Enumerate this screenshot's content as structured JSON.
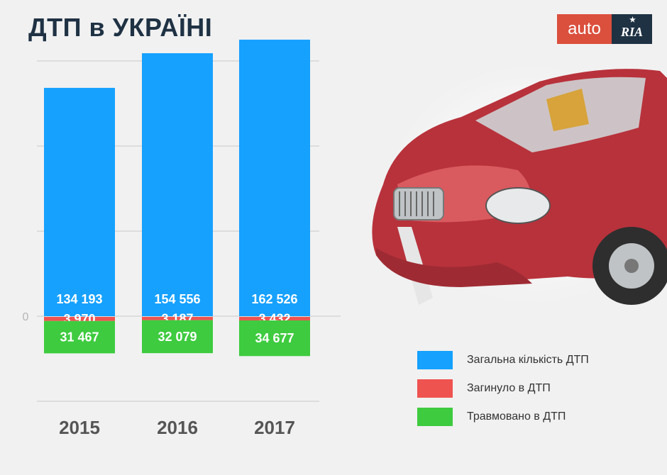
{
  "logo": {
    "left": "auto",
    "right": "RIA"
  },
  "colors": {
    "total": "#16a1ff",
    "killed": "#ef5350",
    "injured": "#3ecb3f",
    "title": "#1f3244",
    "logo_red": "#db4f3d"
  },
  "chart_data": {
    "type": "bar",
    "title": "ДТП в УКРАЇНІ",
    "categories": [
      "2015",
      "2016",
      "2017"
    ],
    "zero_label": "0",
    "series": [
      {
        "name": "Загальна кількість ДТП",
        "values": [
          134193,
          154556,
          162526
        ],
        "labels": [
          "134 193",
          "154 556",
          "162 526"
        ],
        "color": "#16a1ff"
      },
      {
        "name": "Загинуло в ДТП",
        "values": [
          3970,
          3187,
          3432
        ],
        "labels": [
          "3 970",
          "3 187",
          "3 432"
        ],
        "color": "#ef5350"
      },
      {
        "name": "Травмовано в ДТП",
        "values": [
          31467,
          32079,
          34677
        ],
        "labels": [
          "31 467",
          "32 079",
          "34 677"
        ],
        "color": "#3ecb3f"
      }
    ],
    "grid": true,
    "legend": "bottom-right",
    "illustration": "crashed-red-car"
  }
}
